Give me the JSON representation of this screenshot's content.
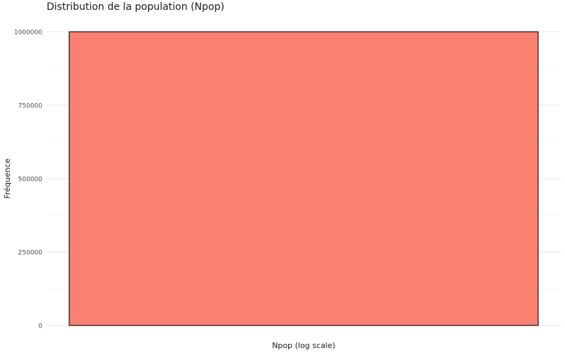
{
  "chart_data": {
    "type": "bar",
    "title": "Distribution de la population (Npop)",
    "xlabel": "Npop (log scale)",
    "ylabel": "Fréquence",
    "categories": [
      ""
    ],
    "values": [
      1000000
    ],
    "ylim": [
      0,
      1000000
    ],
    "yticks": [
      0,
      250000,
      500000,
      750000,
      1000000
    ],
    "ytick_labels": [
      "0",
      "250000",
      "500000",
      "750000",
      "1000000"
    ],
    "grid": true,
    "legend": "none",
    "bar_fill": "#FA8072",
    "bar_outline": "#000000"
  }
}
